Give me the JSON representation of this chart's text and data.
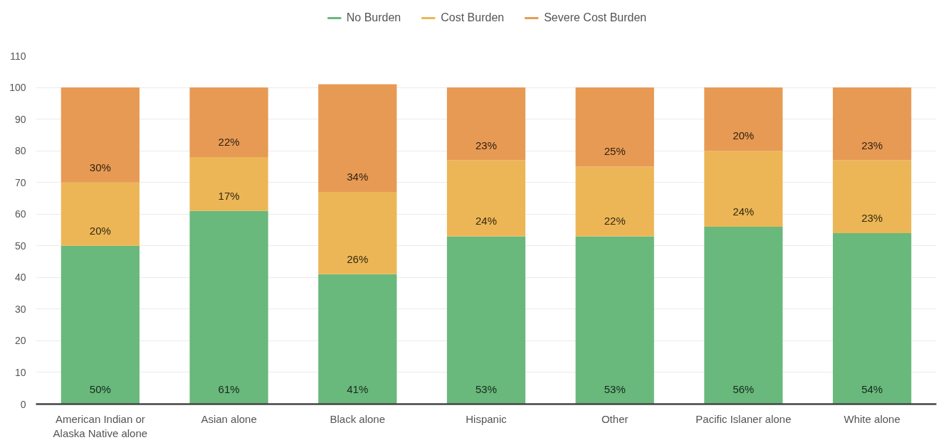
{
  "chart_data": {
    "type": "bar",
    "stacked": true,
    "categories": [
      "American Indian or Alaska Native alone",
      "Asian alone",
      "Black alone",
      "Hispanic",
      "Other",
      "Pacific Islaner alone",
      "White alone"
    ],
    "series": [
      {
        "name": "No Burden",
        "color": "#69b87c",
        "values": [
          50,
          61,
          41,
          53,
          53,
          56,
          54
        ],
        "value_labels": [
          "50%",
          "61%",
          "41%",
          "53%",
          "53%",
          "56%",
          "54%"
        ]
      },
      {
        "name": "Cost Burden",
        "color": "#ecb656",
        "values": [
          20,
          17,
          26,
          24,
          22,
          24,
          23
        ],
        "value_labels": [
          "20%",
          "17%",
          "26%",
          "24%",
          "22%",
          "24%",
          "23%"
        ]
      },
      {
        "name": "Severe Cost Burden",
        "color": "#e79a54",
        "values": [
          30,
          22,
          34,
          23,
          25,
          20,
          23
        ],
        "value_labels": [
          "30%",
          "22%",
          "34%",
          "23%",
          "25%",
          "20%",
          "23%"
        ]
      }
    ],
    "ylim": [
      0,
      110
    ],
    "yticks": [
      0,
      10,
      20,
      30,
      40,
      50,
      60,
      70,
      80,
      90,
      100,
      110
    ],
    "grid": "y",
    "legend": "top"
  }
}
